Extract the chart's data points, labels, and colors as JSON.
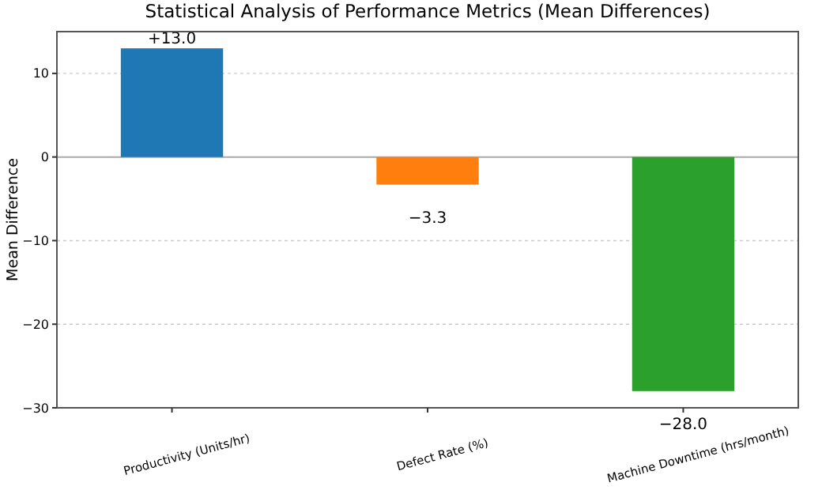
{
  "chart_data": {
    "type": "bar",
    "title": "Statistical Analysis of Performance Metrics (Mean Differences)",
    "ylabel": "Mean Difference",
    "categories": [
      "Productivity (Units/hr)",
      "Defect Rate (%)",
      "Machine Downtime (hrs/month)"
    ],
    "values": [
      13.0,
      -3.3,
      -28.0
    ],
    "colors": [
      "#1f77b4",
      "#ff7f0e",
      "#2ca02c"
    ],
    "value_labels": [
      "+13.0",
      "−3.3",
      "−28.0"
    ],
    "ylim": [
      -30,
      15
    ],
    "yticks": [
      {
        "value": -30,
        "label": "−30"
      },
      {
        "value": -20,
        "label": "−20"
      },
      {
        "value": -10,
        "label": "−10"
      },
      0,
      10
    ],
    "grid": "y",
    "ref_lines": [
      {
        "axis": "y",
        "value": 0,
        "color": "#aaaaaa"
      }
    ]
  }
}
